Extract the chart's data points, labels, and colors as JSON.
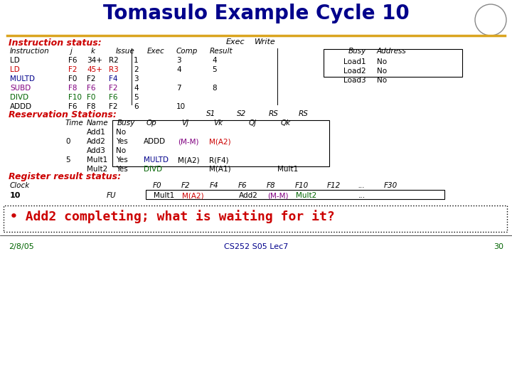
{
  "title": "Tomasulo Example Cycle 10",
  "title_color": "#00008B",
  "bg_color": "#FFFFFF",
  "gold_line_color": "#DAA520",
  "instructions": [
    {
      "name": "LD",
      "j": "F6",
      "k": "34+",
      "reg": "R2",
      "issue": "1",
      "comp": "3",
      "result": "4",
      "color": "black",
      "j_color": "black",
      "k_color": "black"
    },
    {
      "name": "LD",
      "j": "F2",
      "k": "45+",
      "reg": "R3",
      "issue": "2",
      "comp": "4",
      "result": "5",
      "color": "#CC0000",
      "j_color": "#CC0000",
      "k_color": "#CC0000"
    },
    {
      "name": "MULTD",
      "j": "F0",
      "k": "F2",
      "reg": "F4",
      "issue": "3",
      "comp": "",
      "result": "",
      "color": "#00008B",
      "j_color": "black",
      "k_color": "black"
    },
    {
      "name": "SUBD",
      "j": "F8",
      "k": "F6",
      "reg": "F2",
      "issue": "4",
      "comp": "7",
      "result": "8",
      "color": "#800080",
      "j_color": "#800080",
      "k_color": "#800080"
    },
    {
      "name": "DIVD",
      "j": "F10",
      "k": "F0",
      "reg": "F6",
      "issue": "5",
      "comp": "",
      "result": "",
      "color": "#006400",
      "j_color": "#006400",
      "k_color": "#006400"
    },
    {
      "name": "ADDD",
      "j": "F6",
      "k": "F8",
      "reg": "F2",
      "issue": "6",
      "comp": "10",
      "result": "",
      "color": "black",
      "j_color": "black",
      "k_color": "black"
    }
  ],
  "load_stations": [
    {
      "name": "Load1",
      "busy": "No"
    },
    {
      "name": "Load2",
      "busy": "No"
    },
    {
      "name": "Load3",
      "busy": "No"
    }
  ],
  "reservation_stations": [
    {
      "time": "",
      "name": "Add1",
      "busy": "No",
      "op": "",
      "vj": "",
      "vk": "",
      "qj": "",
      "qk": "",
      "op_color": "black",
      "vj_color": "black",
      "vk_color": "black",
      "qk_color": "black"
    },
    {
      "time": "0",
      "name": "Add2",
      "busy": "Yes",
      "op": "ADDD",
      "vj": "(M-M)",
      "vk": "M(A2)",
      "qj": "",
      "qk": "",
      "op_color": "black",
      "vj_color": "#800080",
      "vk_color": "#CC0000",
      "qk_color": "black"
    },
    {
      "time": "",
      "name": "Add3",
      "busy": "No",
      "op": "",
      "vj": "",
      "vk": "",
      "qj": "",
      "qk": "",
      "op_color": "black",
      "vj_color": "black",
      "vk_color": "black",
      "qk_color": "black"
    },
    {
      "time": "5",
      "name": "Mult1",
      "busy": "Yes",
      "op": "MULTD",
      "vj": "M(A2)",
      "vk": "R(F4)",
      "qj": "",
      "qk": "",
      "op_color": "#00008B",
      "vj_color": "black",
      "vk_color": "black",
      "qk_color": "black"
    },
    {
      "time": "",
      "name": "Mult2",
      "busy": "Yes",
      "op": "DIVD",
      "vj": "",
      "vk": "M(A1)",
      "qj": "",
      "qk": "Mult1",
      "op_color": "#006400",
      "vj_color": "black",
      "vk_color": "black",
      "qk_color": "black"
    }
  ],
  "reg_row": {
    "clock": "10",
    "fu": "FU",
    "f0": "Mult1",
    "f0_color": "black",
    "f2": "M(A2)",
    "f2_color": "#CC0000",
    "f4": "",
    "f4_color": "black",
    "f6": "Add2",
    "f6_color": "black",
    "f8": "(M-M)",
    "f8_color": "#800080",
    "f10": "Mult2",
    "f10_color": "#006400",
    "f12": "",
    "f12_color": "black",
    "f30": ""
  },
  "bullet_text": "Add2 completing; what is waiting for it?",
  "bullet_color": "#CC0000",
  "footer_date": "2/8/05",
  "footer_date_color": "#006400",
  "footer_center": "CS252 S05 Lec7",
  "footer_center_color": "#00008B",
  "footer_page": "30",
  "footer_page_color": "#006400"
}
